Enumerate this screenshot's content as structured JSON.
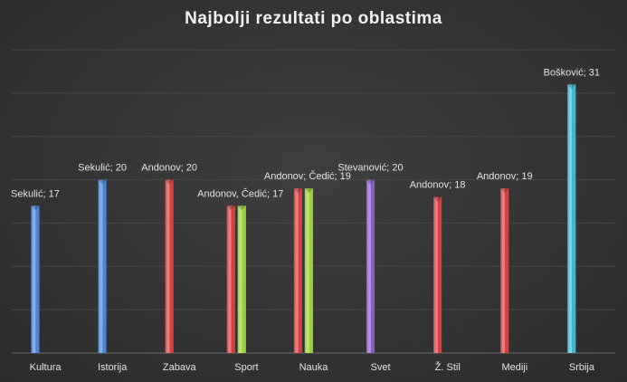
{
  "chart_data": {
    "type": "bar",
    "title": "Najbolji rezultati po oblastima",
    "xlabel": "",
    "ylabel": "",
    "ylim": [
      0,
      35
    ],
    "grid": true,
    "legend": "none",
    "categories": [
      "Kultura",
      "Istorija",
      "Zabava",
      "Sport",
      "Nauka",
      "Svet",
      "Ž. Stil",
      "Mediji",
      "Srbija"
    ],
    "bars": [
      {
        "category": "Kultura",
        "name": "Sekulić",
        "value": 17,
        "color": "#4a86d8",
        "label": "Sekulić; 17",
        "slot": 0
      },
      {
        "category": "Istorija",
        "name": "Sekulić",
        "value": 20,
        "color": "#4a86d8",
        "label": "Sekulić; 20",
        "slot": 0
      },
      {
        "category": "Zabava",
        "name": "Andonov",
        "value": 20,
        "color": "#d64040",
        "label": "Andonov; 20",
        "slot": 0
      },
      {
        "category": "Sport",
        "name": "Andonov",
        "value": 17,
        "color": "#d64040",
        "label": "Andonov, Čedić; 17",
        "slot": 0
      },
      {
        "category": "Sport",
        "name": "Čedić",
        "value": 17,
        "color": "#9ccf3a",
        "label": "",
        "slot": 1
      },
      {
        "category": "Nauka",
        "name": "Andonov",
        "value": 19,
        "color": "#d64040",
        "label": "Andonov; Čedić; 19",
        "slot": 0
      },
      {
        "category": "Nauka",
        "name": "Čedić",
        "value": 19,
        "color": "#9ccf3a",
        "label": "",
        "slot": 1
      },
      {
        "category": "Svet",
        "name": "Stevanović",
        "value": 20,
        "color": "#8a5cc7",
        "label": "Stevanović; 20",
        "slot": 0
      },
      {
        "category": "Ž. Stil",
        "name": "Andonov",
        "value": 18,
        "color": "#d64040",
        "label": "Andonov; 18",
        "slot": 0
      },
      {
        "category": "Mediji",
        "name": "Andonov",
        "value": 19,
        "color": "#d64040",
        "label": "Andonov; 19",
        "slot": 0
      },
      {
        "category": "Srbija",
        "name": "Bošković",
        "value": 31,
        "color": "#3fb6d4",
        "label": "Bošković; 31",
        "slot": 0
      }
    ]
  }
}
